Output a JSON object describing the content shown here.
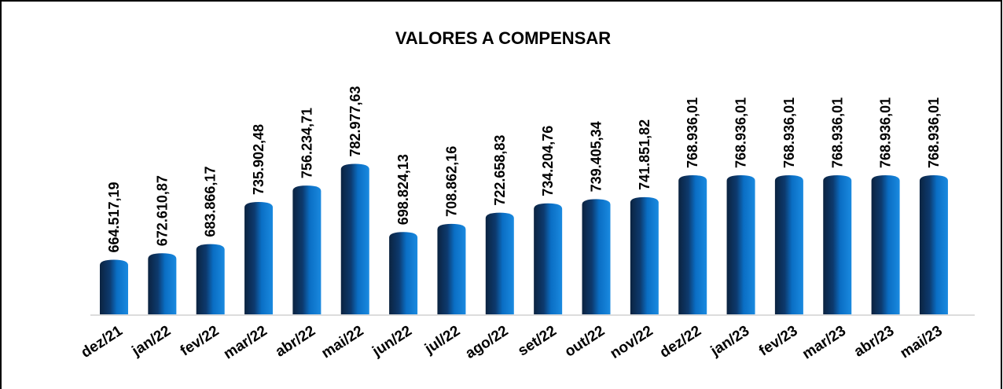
{
  "chart_data": {
    "type": "bar",
    "title": "VALORES A COMPENSAR",
    "categories": [
      "dez/21",
      "jan/22",
      "fev/22",
      "mar/22",
      "abr/22",
      "mai/22",
      "jun/22",
      "jul/22",
      "ago/22",
      "set/22",
      "out/22",
      "nov/22",
      "dez/22",
      "jan/23",
      "fev/23",
      "mar/23",
      "abr/23",
      "mai/23"
    ],
    "values": [
      664517.19,
      672610.87,
      683866.17,
      735902.48,
      756234.71,
      782977.63,
      698824.13,
      708862.16,
      722658.83,
      734204.76,
      739405.34,
      741851.82,
      768936.01,
      768936.01,
      768936.01,
      768936.01,
      768936.01,
      768936.01
    ],
    "value_labels": [
      "664.517,19",
      "672.610,87",
      "683.866,17",
      "735.902,48",
      "756.234,71",
      "782.977,63",
      "698.824,13",
      "708.862,16",
      "722.658,83",
      "734.204,76",
      "739.405,34",
      "741.851,82",
      "768.936,01",
      "768.936,01",
      "768.936,01",
      "768.936,01",
      "768.936,01",
      "768.936,01"
    ],
    "color": "#0a6ec4",
    "ylim": [
      600000,
      800000
    ]
  }
}
